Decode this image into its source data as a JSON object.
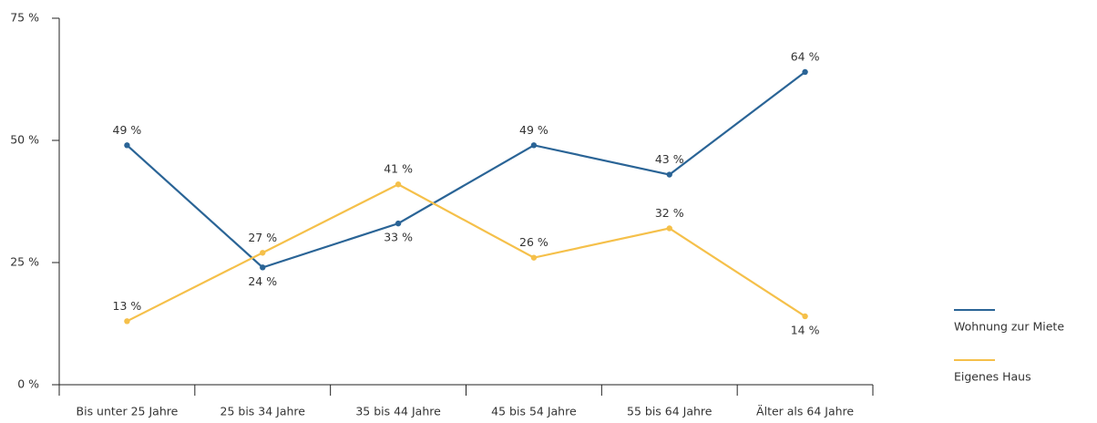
{
  "chart_data": {
    "type": "line",
    "categories": [
      "Bis unter 25 Jahre",
      "25 bis 34 Jahre",
      "35 bis 44 Jahre",
      "45 bis 54 Jahre",
      "55 bis 64 Jahre",
      "Älter als 64 Jahre"
    ],
    "series": [
      {
        "name": "Wohnung zur Miete",
        "color": "#2a6496",
        "values": [
          49,
          24,
          33,
          49,
          43,
          64
        ],
        "value_labels": [
          "49 %",
          "24 %",
          "33 %",
          "49 %",
          "43 %",
          "64 %"
        ]
      },
      {
        "name": "Eigenes Haus",
        "color": "#f5c04a",
        "values": [
          13,
          27,
          41,
          26,
          32,
          14
        ],
        "value_labels": [
          "13 %",
          "27 %",
          "41 %",
          "26 %",
          "32 %",
          "14 %"
        ]
      }
    ],
    "ylim": [
      0,
      75
    ],
    "yticks": [
      {
        "value": 0,
        "label": "0 %"
      },
      {
        "value": 25,
        "label": "25 %"
      },
      {
        "value": 50,
        "label": "50 %"
      },
      {
        "value": 75,
        "label": "75 %"
      }
    ],
    "grid": false,
    "legend": "right"
  }
}
